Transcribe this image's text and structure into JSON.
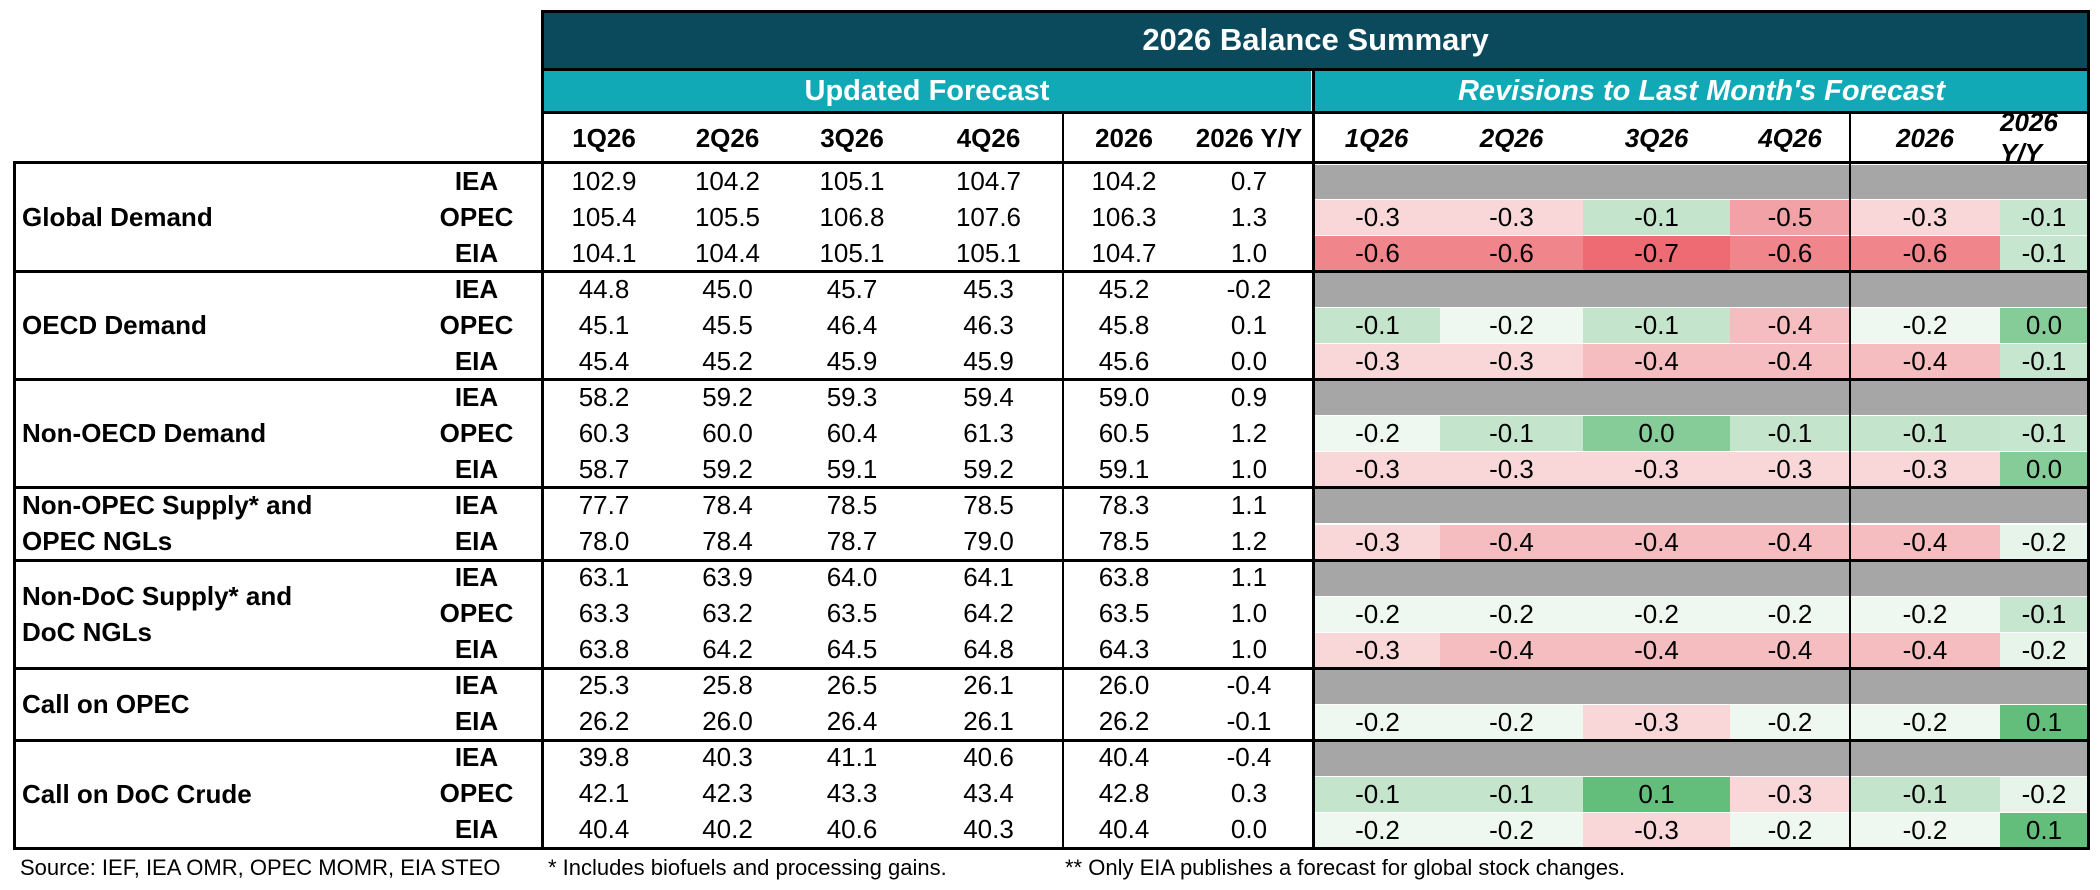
{
  "title": "2026 Balance Summary",
  "updated_header": "Updated Forecast",
  "revisions_header": "Revisions to Last Month's Forecast",
  "updated_columns": [
    "1Q26",
    "2Q26",
    "3Q26",
    "4Q26",
    "2026",
    "2026 Y/Y"
  ],
  "revision_columns": [
    "1Q26",
    "2Q26",
    "3Q26",
    "4Q26",
    "2026",
    "2026 Y/Y"
  ],
  "groups": [
    {
      "label": "Global Demand",
      "rows": [
        {
          "source": "IEA",
          "values": [
            "102.9",
            "104.2",
            "105.1",
            "104.7",
            "104.2",
            "0.7"
          ],
          "revisions": null
        },
        {
          "source": "OPEC",
          "values": [
            "105.4",
            "105.5",
            "106.8",
            "107.6",
            "106.3",
            "1.3"
          ],
          "revisions": [
            "-0.3",
            "-0.3",
            "-0.1",
            "-0.5",
            "-0.3",
            "-0.1"
          ]
        },
        {
          "source": "EIA",
          "values": [
            "104.1",
            "104.4",
            "105.1",
            "105.1",
            "104.7",
            "1.0"
          ],
          "revisions": [
            "-0.6",
            "-0.6",
            "-0.7",
            "-0.6",
            "-0.6",
            "-0.1"
          ]
        }
      ]
    },
    {
      "label": "OECD Demand",
      "rows": [
        {
          "source": "IEA",
          "values": [
            "44.8",
            "45.0",
            "45.7",
            "45.3",
            "45.2",
            "-0.2"
          ],
          "revisions": null
        },
        {
          "source": "OPEC",
          "values": [
            "45.1",
            "45.5",
            "46.4",
            "46.3",
            "45.8",
            "0.1"
          ],
          "revisions": [
            "-0.1",
            "-0.2",
            "-0.1",
            "-0.4",
            "-0.2",
            "0.0"
          ]
        },
        {
          "source": "EIA",
          "values": [
            "45.4",
            "45.2",
            "45.9",
            "45.9",
            "45.6",
            "0.0"
          ],
          "revisions": [
            "-0.3",
            "-0.3",
            "-0.4",
            "-0.4",
            "-0.4",
            "-0.1"
          ]
        }
      ]
    },
    {
      "label": "Non-OECD Demand",
      "rows": [
        {
          "source": "IEA",
          "values": [
            "58.2",
            "59.2",
            "59.3",
            "59.4",
            "59.0",
            "0.9"
          ],
          "revisions": null
        },
        {
          "source": "OPEC",
          "values": [
            "60.3",
            "60.0",
            "60.4",
            "61.3",
            "60.5",
            "1.2"
          ],
          "revisions": [
            "-0.2",
            "-0.1",
            "0.0",
            "-0.1",
            "-0.1",
            "-0.1"
          ]
        },
        {
          "source": "EIA",
          "values": [
            "58.7",
            "59.2",
            "59.1",
            "59.2",
            "59.1",
            "1.0"
          ],
          "revisions": [
            "-0.3",
            "-0.3",
            "-0.3",
            "-0.3",
            "-0.3",
            "0.0"
          ]
        }
      ]
    },
    {
      "label": "Non-OPEC Supply* and OPEC NGLs",
      "label_lines": [
        "Non-OPEC Supply* and",
        "OPEC NGLs"
      ],
      "rows": [
        {
          "source": "IEA",
          "values": [
            "77.7",
            "78.4",
            "78.5",
            "78.5",
            "78.3",
            "1.1"
          ],
          "revisions": null
        },
        {
          "source": "EIA",
          "values": [
            "78.0",
            "78.4",
            "78.7",
            "79.0",
            "78.5",
            "1.2"
          ],
          "revisions": [
            "-0.3",
            "-0.4",
            "-0.4",
            "-0.4",
            "-0.4",
            "-0.2"
          ]
        }
      ]
    },
    {
      "label": "Non-DoC Supply* and DoC NGLs",
      "label_lines": [
        "Non-DoC Supply* and",
        "DoC NGLs"
      ],
      "rows": [
        {
          "source": "IEA",
          "values": [
            "63.1",
            "63.9",
            "64.0",
            "64.1",
            "63.8",
            "1.1"
          ],
          "revisions": null
        },
        {
          "source": "OPEC",
          "values": [
            "63.3",
            "63.2",
            "63.5",
            "64.2",
            "63.5",
            "1.0"
          ],
          "revisions": [
            "-0.2",
            "-0.2",
            "-0.2",
            "-0.2",
            "-0.2",
            "-0.1"
          ]
        },
        {
          "source": "EIA",
          "values": [
            "63.8",
            "64.2",
            "64.5",
            "64.8",
            "64.3",
            "1.0"
          ],
          "revisions": [
            "-0.3",
            "-0.4",
            "-0.4",
            "-0.4",
            "-0.4",
            "-0.2"
          ]
        }
      ]
    },
    {
      "label": "Call on OPEC",
      "rows": [
        {
          "source": "IEA",
          "values": [
            "25.3",
            "25.8",
            "26.5",
            "26.1",
            "26.0",
            "-0.4"
          ],
          "revisions": null
        },
        {
          "source": "EIA",
          "values": [
            "26.2",
            "26.0",
            "26.4",
            "26.1",
            "26.2",
            "-0.1"
          ],
          "revisions": [
            "-0.2",
            "-0.2",
            "-0.3",
            "-0.2",
            "-0.2",
            "0.1"
          ]
        }
      ]
    },
    {
      "label": "Call on DoC Crude",
      "rows": [
        {
          "source": "IEA",
          "values": [
            "39.8",
            "40.3",
            "41.1",
            "40.6",
            "40.4",
            "-0.4"
          ],
          "revisions": null
        },
        {
          "source": "OPEC",
          "values": [
            "42.1",
            "42.3",
            "43.3",
            "43.4",
            "42.8",
            "0.3"
          ],
          "revisions": [
            "-0.1",
            "-0.1",
            "0.1",
            "-0.3",
            "-0.1",
            "-0.2"
          ]
        },
        {
          "source": "EIA",
          "values": [
            "40.4",
            "40.2",
            "40.6",
            "40.3",
            "40.4",
            "0.0"
          ],
          "revisions": [
            "-0.2",
            "-0.2",
            "-0.3",
            "-0.2",
            "-0.2",
            "0.1"
          ]
        }
      ]
    }
  ],
  "footer": {
    "source": "Source: IEF, IEA OMR, OPEC MOMR, EIA STEO",
    "note1": "* Includes biofuels and processing gains.",
    "note2": "** Only EIA publishes a forecast for global stock changes."
  },
  "colors": {
    "title_bg": "#0b4a5c",
    "subheader_bg": "#11a9b6",
    "no_revision_row": "#a6a6a6",
    "negative_scale": [
      "#ffffff",
      "#f4b6b9",
      "#ee6b73"
    ],
    "positive_scale": [
      "#ffffff",
      "#b9e0c3",
      "#63be7b"
    ]
  }
}
